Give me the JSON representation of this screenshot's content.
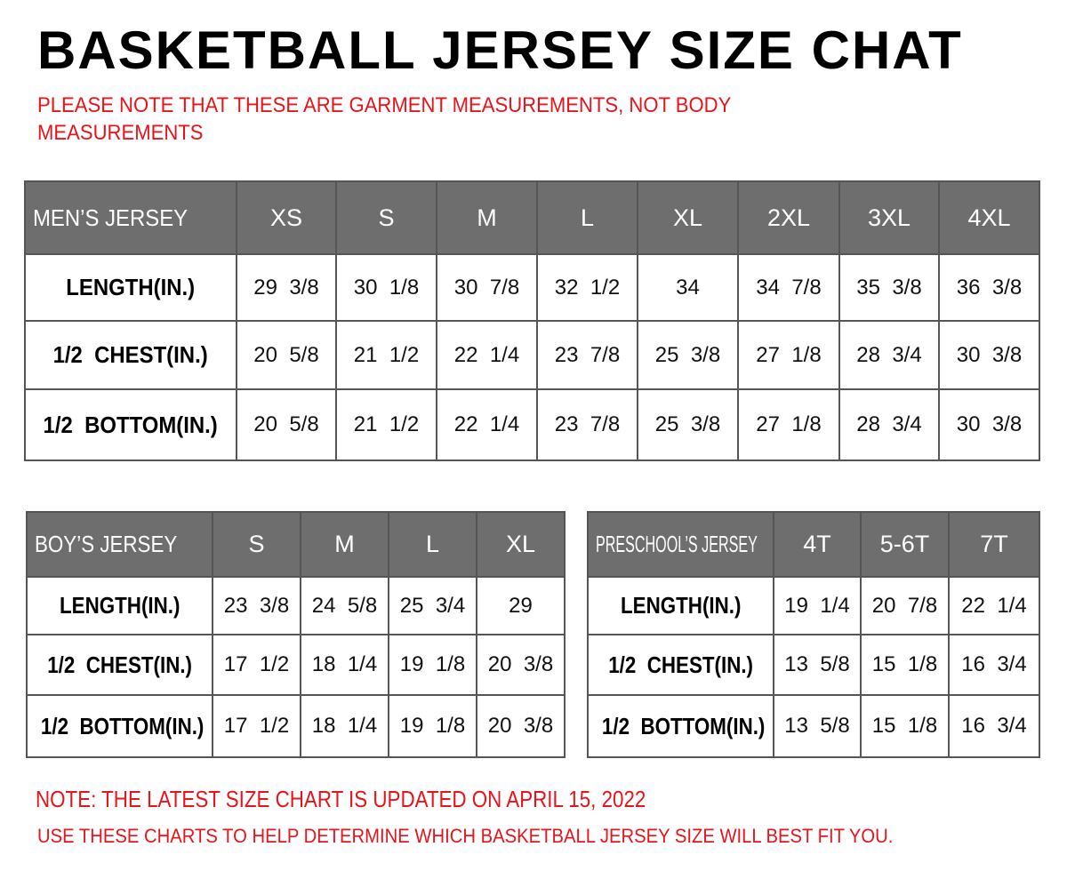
{
  "title": "BASKETBALL JERSEY SIZE CHAT",
  "garment_note": "PLEASE NOTE THAT THESE ARE GARMENT MEASUREMENTS, NOT BODY MEASUREMENTS",
  "tables": [
    {
      "header": [
        "MEN’S JERSEY",
        "XS",
        "S",
        "M",
        "L",
        "XL",
        "2XL",
        "3XL",
        "4XL"
      ],
      "rows": [
        [
          "LENGTH(IN.)",
          "29  3/8",
          "30  1/8",
          "30  7/8",
          "32  1/2",
          "34",
          "34  7/8",
          "35  3/8",
          "36  3/8"
        ],
        [
          "1/2  CHEST(IN.)",
          "20  5/8",
          "21  1/2",
          "22  1/4",
          "23  7/8",
          "25  3/8",
          "27  1/8",
          "28  3/4",
          "30  3/8"
        ],
        [
          "1/2  BOTTOM(IN.)",
          "20  5/8",
          "21  1/2",
          "22  1/4",
          "23  7/8",
          "25  3/8",
          "27  1/8",
          "28  3/4",
          "30  3/8"
        ]
      ]
    },
    {
      "header": [
        "BOY’S JERSEY",
        "S",
        "M",
        "L",
        "XL"
      ],
      "rows": [
        [
          "LENGTH(IN.)",
          "23  3/8",
          "24  5/8",
          "25  3/4",
          "29"
        ],
        [
          "1/2  CHEST(IN.)",
          "17  1/2",
          "18  1/4",
          "19  1/8",
          "20  3/8"
        ],
        [
          "1/2  BOTTOM(IN.)",
          "17  1/2",
          "18  1/4",
          "19  1/8",
          "20  3/8"
        ]
      ]
    },
    {
      "header": [
        "PRESCHOOL’S JERSEY",
        "4T",
        "5-6T",
        "7T"
      ],
      "rows": [
        [
          "LENGTH(IN.)",
          "19  1/4",
          "20  7/8",
          "22  1/4"
        ],
        [
          "1/2  CHEST(IN.)",
          "13  5/8",
          "15  1/8",
          "16  3/4"
        ],
        [
          "1/2  BOTTOM(IN.)",
          "13  5/8",
          "15  1/8",
          "16  3/4"
        ]
      ]
    }
  ],
  "update_note": "NOTE: THE LATEST SIZE CHART IS UPDATED ON APRIL 15, 2022",
  "usage_note": "USE THESE CHARTS TO HELP DETERMINE WHICH  BASKETBALL JERSEY  SIZE WILL BEST FIT YOU.",
  "colors": {
    "header_bg": "#6e6e6e",
    "note_red": "#e8141b",
    "border": "#555555"
  }
}
